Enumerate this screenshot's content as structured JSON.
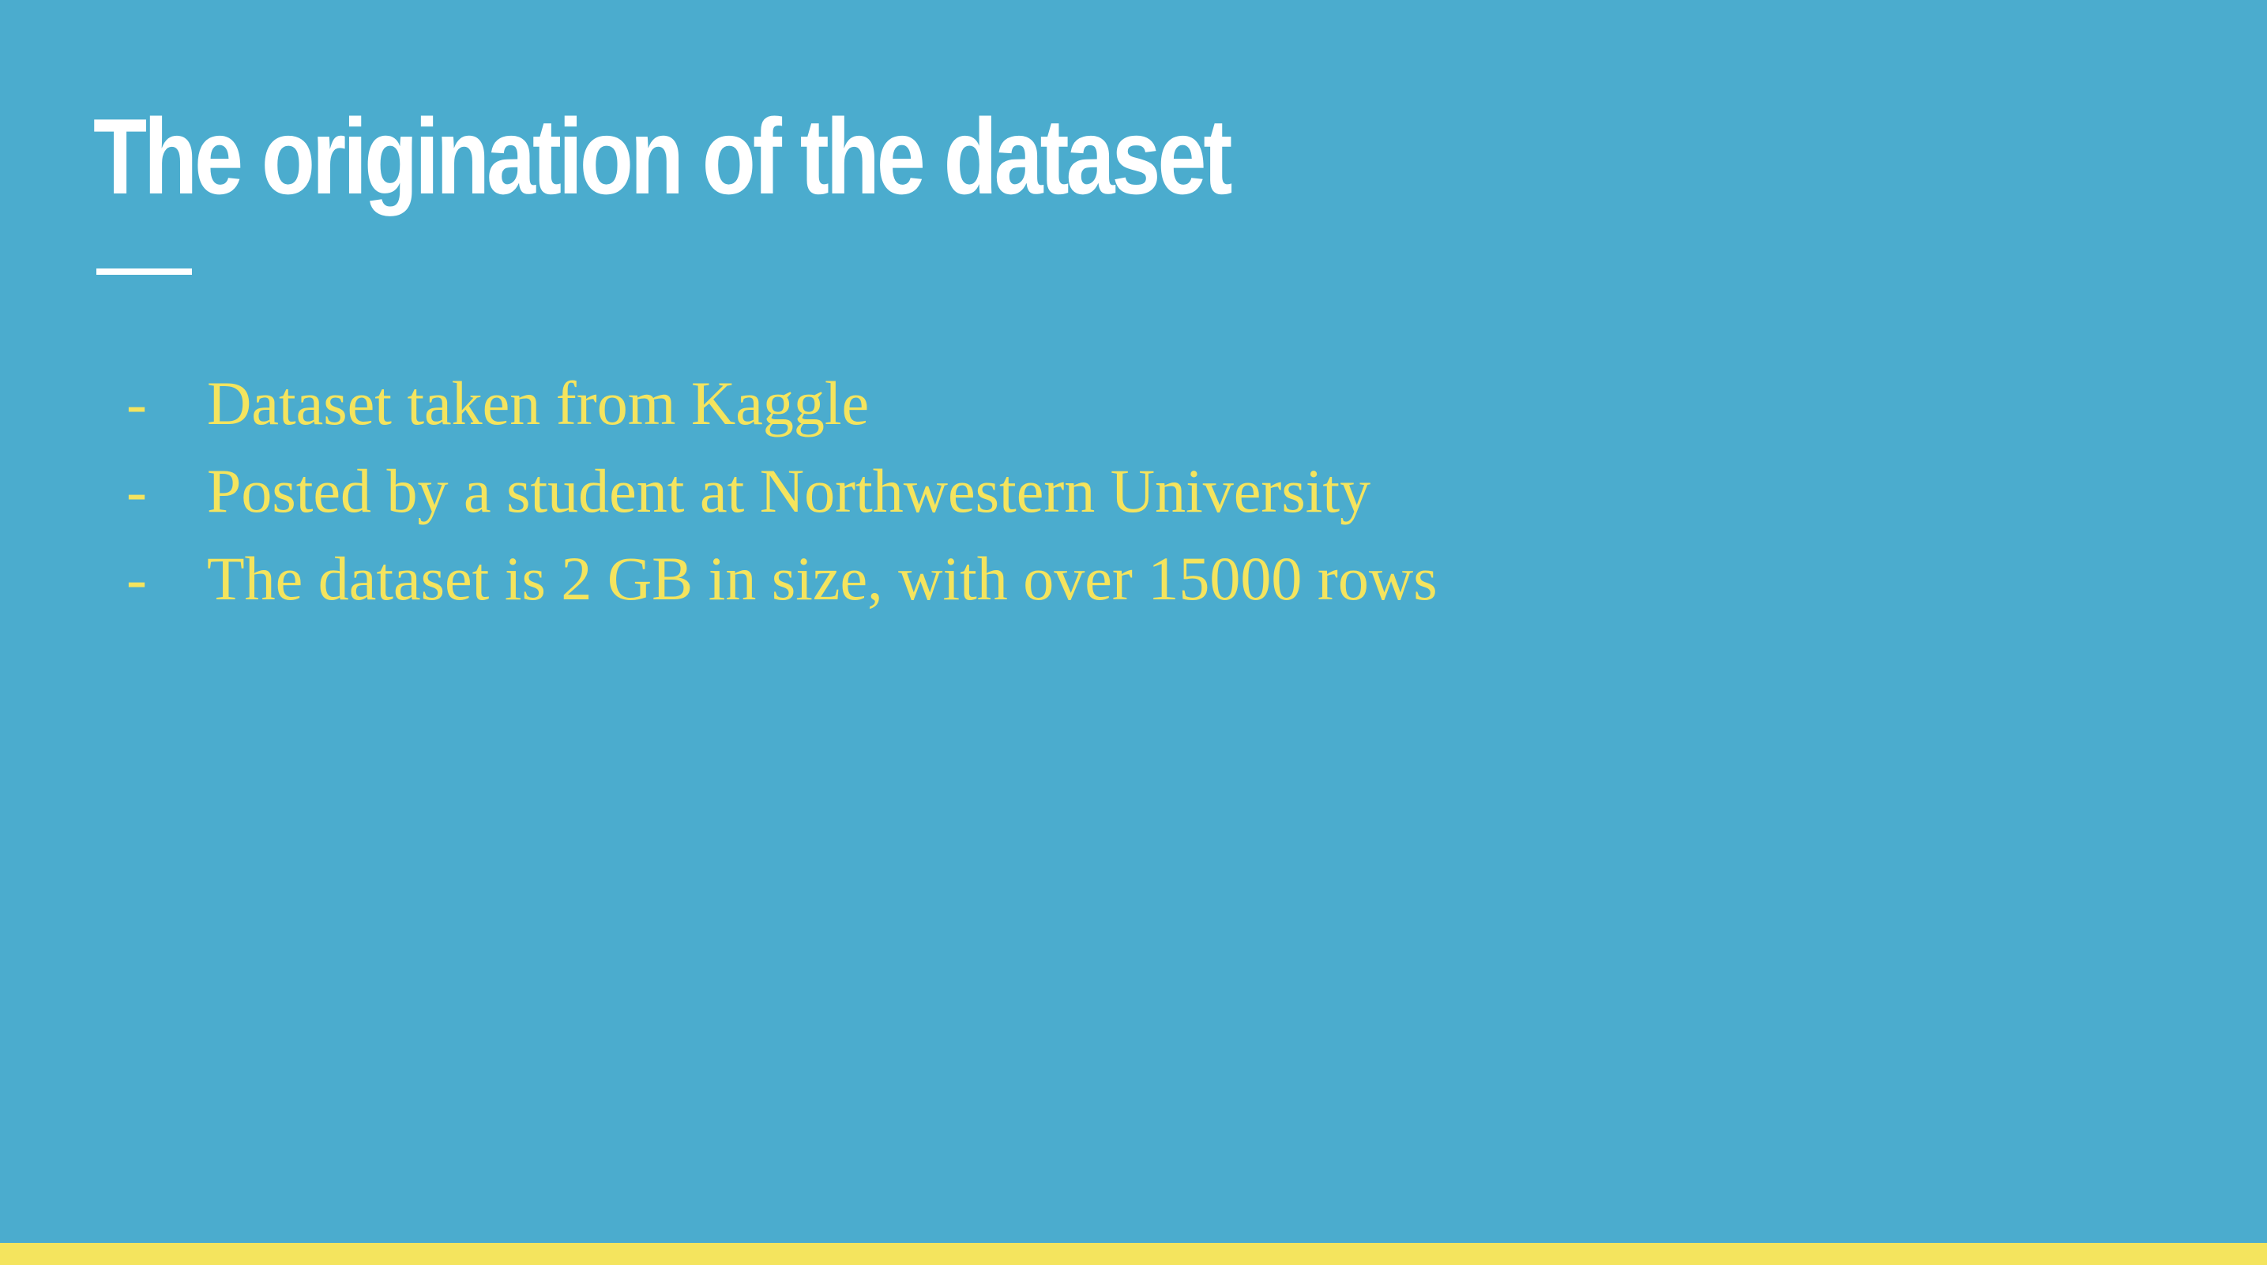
{
  "slide": {
    "title": "The origination of the dataset",
    "bullet_marker": "-",
    "bullets": [
      "Dataset taken from Kaggle",
      "Posted by a student at Northwestern University",
      "The dataset is 2 GB in size, with over 15000 rows"
    ]
  },
  "colors": {
    "background": "#4BACCE",
    "title_text": "#FFFFFF",
    "body_text": "#F4E45E",
    "accent_bar": "#F4E45E"
  }
}
